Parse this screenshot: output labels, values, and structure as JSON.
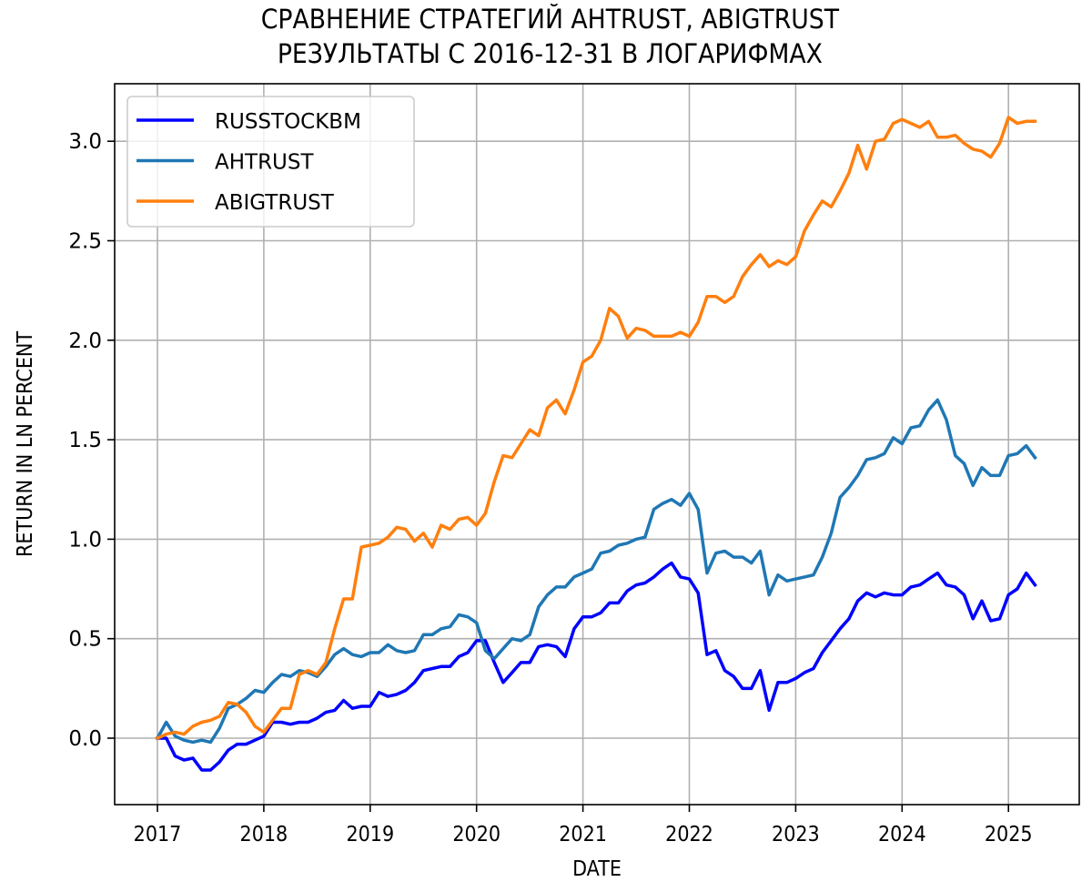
{
  "chart_data": {
    "type": "line",
    "title": "СРАВНЕНИЕ СТРАТЕГИЙ AHTRUST, ABIGTRUST\nРЕЗУЛЬТАТЫ С 2016-12-31 В ЛОГАРИФМАХ",
    "title_lines": [
      "СРАВНЕНИЕ СТРАТЕГИЙ AHTRUST, ABIGTRUST",
      "РЕЗУЛЬТАТЫ С 2016-12-31 В ЛОГАРИФМАХ"
    ],
    "xlabel": "DATE",
    "ylabel": "RETURN IN LN PERCENT",
    "x_tick_labels": [
      "2017",
      "2018",
      "2019",
      "2020",
      "2021",
      "2022",
      "2023",
      "2024",
      "2025"
    ],
    "y_tick_labels": [
      "0.0",
      "0.5",
      "1.0",
      "1.5",
      "2.0",
      "2.5",
      "3.0"
    ],
    "y_ticks": [
      0.0,
      0.5,
      1.0,
      1.5,
      2.0,
      2.5,
      3.0
    ],
    "xlim": [
      2016.6,
      2025.67
    ],
    "ylim": [
      -0.33,
      3.31
    ],
    "grid": true,
    "legend_position": "upper left",
    "x_start": 2017.0,
    "x_step_months": 1,
    "series": [
      {
        "name": "RUSSTOCKBM",
        "color": "#0000ff",
        "values": [
          0.0,
          0.0,
          -0.09,
          -0.11,
          -0.1,
          -0.16,
          -0.16,
          -0.12,
          -0.06,
          -0.03,
          -0.03,
          -0.01,
          0.01,
          0.08,
          0.08,
          0.07,
          0.08,
          0.08,
          0.1,
          0.13,
          0.14,
          0.19,
          0.15,
          0.16,
          0.16,
          0.23,
          0.21,
          0.22,
          0.24,
          0.28,
          0.34,
          0.35,
          0.36,
          0.36,
          0.41,
          0.43,
          0.49,
          0.49,
          0.38,
          0.28,
          0.33,
          0.38,
          0.38,
          0.46,
          0.47,
          0.46,
          0.41,
          0.55,
          0.61,
          0.61,
          0.63,
          0.68,
          0.68,
          0.74,
          0.77,
          0.78,
          0.81,
          0.85,
          0.88,
          0.81,
          0.8,
          0.73,
          0.42,
          0.44,
          0.34,
          0.31,
          0.25,
          0.25,
          0.34,
          0.14,
          0.28,
          0.28,
          0.3,
          0.33,
          0.35,
          0.43,
          0.49,
          0.55,
          0.6,
          0.69,
          0.73,
          0.71,
          0.73,
          0.72,
          0.72,
          0.76,
          0.77,
          0.8,
          0.83,
          0.77,
          0.76,
          0.72,
          0.6,
          0.69,
          0.59,
          0.6,
          0.72,
          0.75,
          0.83,
          0.77
        ]
      },
      {
        "name": "AHTRUST",
        "color": "#1f77b4",
        "values": [
          0.0,
          0.08,
          0.01,
          -0.01,
          -0.02,
          -0.01,
          -0.02,
          0.05,
          0.15,
          0.17,
          0.2,
          0.24,
          0.23,
          0.28,
          0.32,
          0.31,
          0.34,
          0.33,
          0.31,
          0.36,
          0.42,
          0.45,
          0.42,
          0.41,
          0.43,
          0.43,
          0.47,
          0.44,
          0.43,
          0.44,
          0.52,
          0.52,
          0.55,
          0.56,
          0.62,
          0.61,
          0.58,
          0.44,
          0.4,
          0.45,
          0.5,
          0.49,
          0.52,
          0.66,
          0.72,
          0.76,
          0.76,
          0.81,
          0.83,
          0.85,
          0.93,
          0.94,
          0.97,
          0.98,
          1.0,
          1.01,
          1.15,
          1.18,
          1.2,
          1.17,
          1.23,
          1.15,
          0.83,
          0.93,
          0.94,
          0.91,
          0.91,
          0.88,
          0.94,
          0.72,
          0.82,
          0.79,
          0.8,
          0.81,
          0.82,
          0.91,
          1.03,
          1.21,
          1.26,
          1.32,
          1.4,
          1.41,
          1.43,
          1.51,
          1.48,
          1.56,
          1.57,
          1.65,
          1.7,
          1.6,
          1.42,
          1.38,
          1.27,
          1.36,
          1.32,
          1.32,
          1.42,
          1.43,
          1.47,
          1.41
        ]
      },
      {
        "name": "ABIGTRUST",
        "color": "#ff7f0e",
        "values": [
          0.0,
          0.02,
          0.03,
          0.02,
          0.06,
          0.08,
          0.09,
          0.11,
          0.18,
          0.17,
          0.13,
          0.06,
          0.03,
          0.09,
          0.15,
          0.15,
          0.32,
          0.34,
          0.32,
          0.38,
          0.55,
          0.7,
          0.7,
          0.96,
          0.97,
          0.98,
          1.01,
          1.06,
          1.05,
          0.99,
          1.03,
          0.96,
          1.07,
          1.05,
          1.1,
          1.11,
          1.07,
          1.13,
          1.29,
          1.42,
          1.41,
          1.48,
          1.55,
          1.52,
          1.66,
          1.7,
          1.63,
          1.75,
          1.89,
          1.92,
          2.0,
          2.16,
          2.12,
          2.01,
          2.06,
          2.05,
          2.02,
          2.02,
          2.02,
          2.04,
          2.02,
          2.09,
          2.22,
          2.22,
          2.19,
          2.22,
          2.32,
          2.38,
          2.43,
          2.37,
          2.4,
          2.38,
          2.42,
          2.55,
          2.63,
          2.7,
          2.67,
          2.75,
          2.84,
          2.98,
          2.86,
          3.0,
          3.01,
          3.09,
          3.11,
          3.09,
          3.07,
          3.1,
          3.02,
          3.02,
          3.03,
          2.99,
          2.96,
          2.95,
          2.92,
          2.99,
          3.12,
          3.09,
          3.1,
          3.1
        ]
      }
    ]
  }
}
